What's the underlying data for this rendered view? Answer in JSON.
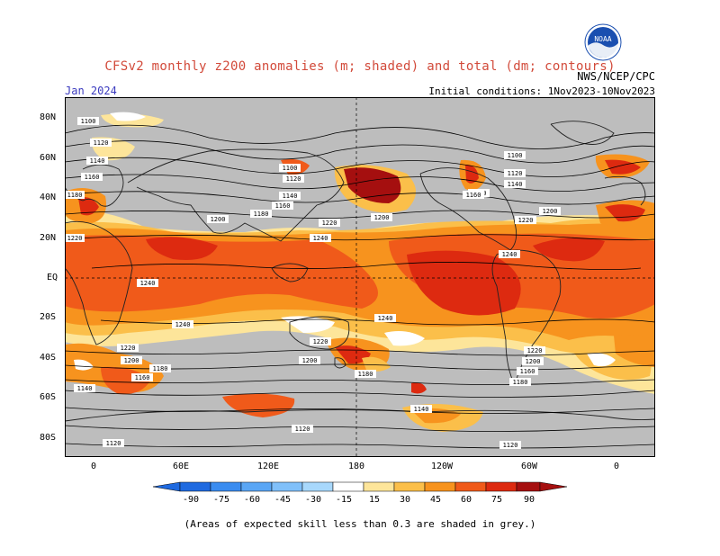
{
  "header": {
    "title": "CFSv2 monthly z200 anomalies (m; shaded) and total (dm; contours)",
    "month": "Jan 2024",
    "agency": "NWS/NCEP/CPC",
    "initial_conditions": "Initial conditions: 1Nov2023-10Nov2023",
    "logo_text": "NOAA"
  },
  "axes": {
    "lat_labels": [
      "80N",
      "60N",
      "40N",
      "20N",
      "EQ",
      "20S",
      "40S",
      "60S",
      "80S"
    ],
    "lon_labels": [
      "0",
      "60E",
      "120E",
      "180",
      "120W",
      "60W",
      "0"
    ]
  },
  "contour_labels": [
    "1100",
    "1120",
    "1140",
    "1160",
    "1180",
    "1200",
    "1220",
    "1240"
  ],
  "colorbar": {
    "ticks": [
      "-90",
      "-75",
      "-60",
      "-45",
      "-30",
      "-15",
      "15",
      "30",
      "45",
      "60",
      "75",
      "90"
    ],
    "colors": [
      "#1f6ae0",
      "#3a8cf0",
      "#5aa6f5",
      "#80c0fa",
      "#a8d8fc",
      "#ffffff",
      "#fde59a",
      "#fbbf4a",
      "#f7931e",
      "#f05a1a",
      "#dd2a10",
      "#a50f0f"
    ],
    "skill_color": "#bdbdbd"
  },
  "caption": "(Areas of expected skill less than 0.3 are shaded in grey.)"
}
